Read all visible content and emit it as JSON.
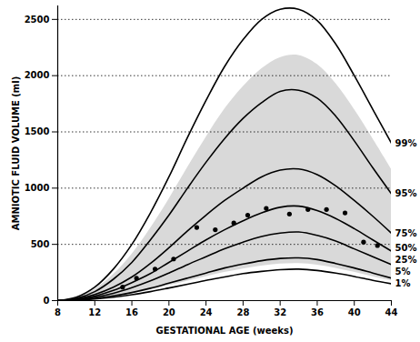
{
  "chart_data": {
    "type": "line",
    "x_label": "GESTATIONAL AGE (weeks)",
    "y_label": "AMNIOTIC FLUID VOLUME (ml)",
    "x": [
      8,
      10,
      12,
      14,
      16,
      18,
      20,
      22,
      24,
      26,
      28,
      30,
      32,
      34,
      36,
      38,
      40,
      42,
      44
    ],
    "series": [
      {
        "name": "99%",
        "color": "#000000",
        "values": [
          0,
          30,
          120,
          280,
          500,
          780,
          1100,
          1450,
          1780,
          2080,
          2320,
          2500,
          2590,
          2590,
          2490,
          2280,
          2000,
          1700,
          1400
        ]
      },
      {
        "name": "95%",
        "color": "#000000",
        "values": [
          0,
          20,
          80,
          190,
          340,
          540,
          760,
          1000,
          1230,
          1440,
          1620,
          1760,
          1860,
          1870,
          1800,
          1640,
          1420,
          1180,
          950
        ]
      },
      {
        "name": "75%",
        "color": "#000000",
        "values": [
          0,
          15,
          55,
          120,
          210,
          330,
          470,
          620,
          760,
          890,
          1000,
          1100,
          1160,
          1170,
          1120,
          1020,
          890,
          750,
          600
        ]
      },
      {
        "name": "50%",
        "color": "#000000",
        "values": [
          0,
          10,
          40,
          90,
          160,
          240,
          340,
          440,
          540,
          630,
          710,
          780,
          830,
          840,
          800,
          730,
          640,
          540,
          440
        ]
      },
      {
        "name": "25%",
        "color": "#000000",
        "values": [
          0,
          8,
          30,
          65,
          115,
          175,
          245,
          320,
          390,
          460,
          520,
          570,
          600,
          610,
          580,
          530,
          460,
          390,
          320
        ]
      },
      {
        "name": "5%",
        "color": "#000000",
        "values": [
          0,
          5,
          20,
          42,
          72,
          110,
          155,
          200,
          245,
          290,
          325,
          355,
          375,
          380,
          365,
          330,
          290,
          245,
          200
        ]
      },
      {
        "name": "1%",
        "color": "#000000",
        "values": [
          0,
          4,
          14,
          30,
          52,
          80,
          112,
          145,
          180,
          210,
          240,
          260,
          275,
          280,
          268,
          245,
          215,
          180,
          150
        ]
      }
    ],
    "band": {
      "color": "#d9d9d9",
      "lower": [
        0,
        5,
        17,
        36,
        62,
        95,
        133,
        172,
        212,
        250,
        282,
        307,
        325,
        330,
        316,
        288,
        252,
        212,
        175
      ],
      "upper": [
        0,
        25,
        100,
        230,
        410,
        640,
        900,
        1180,
        1450,
        1700,
        1900,
        2060,
        2160,
        2180,
        2100,
        1930,
        1700,
        1440,
        1170
      ]
    },
    "points": {
      "color": "#000000",
      "marker": "circle",
      "x": [
        15,
        16.5,
        18.5,
        20.5,
        23,
        25,
        27,
        28.5,
        30.5,
        33,
        35,
        37,
        39,
        41,
        42.5
      ],
      "values": [
        120,
        200,
        280,
        370,
        650,
        630,
        690,
        760,
        820,
        770,
        810,
        810,
        780,
        520,
        490
      ]
    },
    "xlim": [
      8,
      44
    ],
    "ylim": [
      0,
      2620
    ],
    "xticks": [
      8,
      12,
      16,
      20,
      24,
      28,
      32,
      36,
      40,
      44
    ],
    "yticks": [
      0,
      500,
      1000,
      1500,
      2000,
      2500
    ],
    "grid": true
  }
}
